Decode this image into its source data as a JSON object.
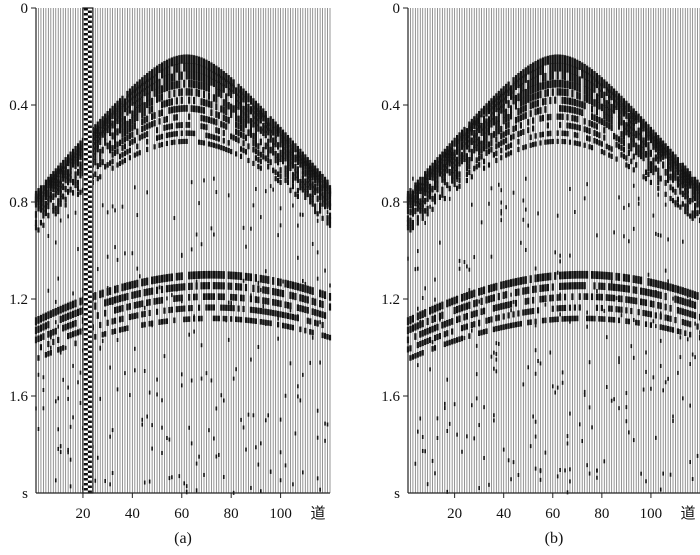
{
  "chart_data": [
    {
      "type": "seismic-gather",
      "panel_label": "(a)",
      "y_axis": {
        "range": [
          0,
          2.0
        ],
        "direction": "down",
        "tick_values": [
          0,
          0.4,
          0.8,
          1.2,
          1.6
        ],
        "tick_labels": [
          "0",
          "0.4",
          "0.8",
          "1.2",
          "1.6"
        ],
        "unit_label": "s"
      },
      "x_axis": {
        "range": [
          1,
          120
        ],
        "tick_values": [
          20,
          40,
          60,
          80,
          100
        ],
        "tick_labels": [
          "20",
          "40",
          "60",
          "80",
          "100"
        ],
        "unit_label": "道"
      },
      "traces": 120,
      "events": [
        {
          "kind": "hyperbola",
          "apex_trace": 62,
          "apex_time": 0.21,
          "velocity_trace_per_s": 82,
          "bands": 11,
          "band_spacing_s": 0.034
        },
        {
          "kind": "hyperbola",
          "apex_trace": 72,
          "apex_time": 1.1,
          "velocity_trace_per_s": 105,
          "bands": 5,
          "band_spacing_s": 0.045
        }
      ],
      "noisy_trace": 22
    },
    {
      "type": "seismic-gather",
      "panel_label": "(b)",
      "y_axis": {
        "range": [
          0,
          2.0
        ],
        "direction": "down",
        "tick_values": [
          0,
          0.4,
          0.8,
          1.2,
          1.6
        ],
        "tick_labels": [
          "0",
          "0.4",
          "0.8",
          "1.2",
          "1.6"
        ],
        "unit_label": "s"
      },
      "x_axis": {
        "range": [
          1,
          120
        ],
        "tick_values": [
          20,
          40,
          60,
          80,
          100
        ],
        "tick_labels": [
          "20",
          "40",
          "60",
          "80",
          "100"
        ],
        "unit_label": "道"
      },
      "traces": 120,
      "events": [
        {
          "kind": "hyperbola",
          "apex_trace": 62,
          "apex_time": 0.21,
          "velocity_trace_per_s": 82,
          "bands": 11,
          "band_spacing_s": 0.034
        },
        {
          "kind": "hyperbola",
          "apex_trace": 72,
          "apex_time": 1.1,
          "velocity_trace_per_s": 105,
          "bands": 5,
          "band_spacing_s": 0.045
        }
      ],
      "noisy_trace": null
    }
  ],
  "colors": {
    "trace": "#7a7a7a",
    "event": "#111111",
    "axis": "#222222"
  }
}
